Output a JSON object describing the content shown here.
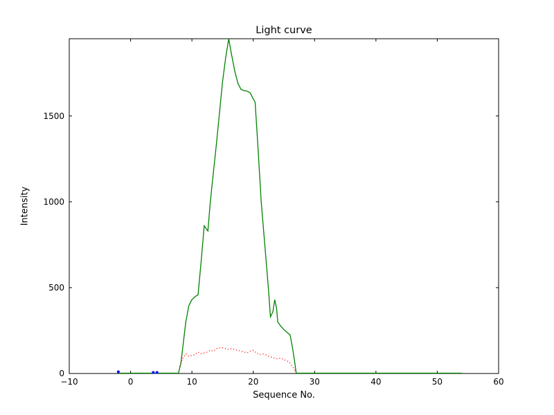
{
  "chart_data": {
    "type": "line",
    "title": "Light curve",
    "xlabel": "Sequence No.",
    "ylabel": "Intensity",
    "xlim": [
      -10,
      60
    ],
    "ylim": [
      0,
      1950
    ],
    "x_ticks": [
      -10,
      0,
      10,
      20,
      30,
      40,
      50,
      60
    ],
    "x_tick_labels": [
      "−10",
      "0",
      "10",
      "20",
      "30",
      "40",
      "50",
      "60"
    ],
    "y_ticks": [
      0,
      500,
      1000,
      1500
    ],
    "y_tick_labels": [
      "0",
      "500",
      "1000",
      "1500"
    ],
    "grid": false,
    "legend": null,
    "series": [
      {
        "name": "main-light-curve",
        "type": "line",
        "style": "solid",
        "color": "#008000",
        "points": [
          [
            -2,
            2
          ],
          [
            7.8,
            2
          ],
          [
            8.2,
            60
          ],
          [
            8.5,
            150
          ],
          [
            9,
            300
          ],
          [
            9.5,
            395
          ],
          [
            10,
            430
          ],
          [
            10.6,
            450
          ],
          [
            11,
            458
          ],
          [
            11.5,
            650
          ],
          [
            12,
            860
          ],
          [
            12.3,
            845
          ],
          [
            12.6,
            830
          ],
          [
            13,
            1000
          ],
          [
            13.5,
            1170
          ],
          [
            14,
            1340
          ],
          [
            14.5,
            1520
          ],
          [
            15,
            1700
          ],
          [
            15.5,
            1840
          ],
          [
            16,
            1950
          ],
          [
            16.4,
            1870
          ],
          [
            17,
            1760
          ],
          [
            17.5,
            1690
          ],
          [
            18,
            1655
          ],
          [
            18.5,
            1648
          ],
          [
            19,
            1645
          ],
          [
            19.5,
            1635
          ],
          [
            20,
            1600
          ],
          [
            20.3,
            1580
          ],
          [
            20.8,
            1300
          ],
          [
            21.3,
            1000
          ],
          [
            22,
            700
          ],
          [
            22.5,
            480
          ],
          [
            22.8,
            330
          ],
          [
            23.2,
            360
          ],
          [
            23.5,
            430
          ],
          [
            23.8,
            380
          ],
          [
            24,
            300
          ],
          [
            24.5,
            275
          ],
          [
            25,
            255
          ],
          [
            25.5,
            240
          ],
          [
            26,
            225
          ],
          [
            26.4,
            150
          ],
          [
            26.7,
            80
          ],
          [
            27,
            2
          ],
          [
            54,
            2
          ]
        ]
      },
      {
        "name": "background-curve",
        "type": "line",
        "style": "dotted",
        "color": "#ff0000",
        "points": [
          [
            8,
            40
          ],
          [
            8.5,
            90
          ],
          [
            9,
            115
          ],
          [
            9.5,
            100
          ],
          [
            10,
            105
          ],
          [
            10.5,
            110
          ],
          [
            11,
            125
          ],
          [
            11.5,
            115
          ],
          [
            12,
            120
          ],
          [
            12.5,
            125
          ],
          [
            13,
            135
          ],
          [
            13.5,
            130
          ],
          [
            14,
            145
          ],
          [
            14.5,
            150
          ],
          [
            15,
            150
          ],
          [
            15.5,
            145
          ],
          [
            16,
            140
          ],
          [
            16.5,
            145
          ],
          [
            17,
            140
          ],
          [
            17.5,
            135
          ],
          [
            18,
            130
          ],
          [
            18.5,
            125
          ],
          [
            19,
            120
          ],
          [
            19.5,
            130
          ],
          [
            20,
            135
          ],
          [
            20.5,
            120
          ],
          [
            21,
            110
          ],
          [
            21.5,
            115
          ],
          [
            22,
            110
          ],
          [
            22.5,
            100
          ],
          [
            23,
            95
          ],
          [
            23.5,
            90
          ],
          [
            24,
            85
          ],
          [
            24.5,
            90
          ],
          [
            25,
            80
          ],
          [
            25.5,
            75
          ],
          [
            26,
            60
          ],
          [
            26.5,
            35
          ],
          [
            27,
            5
          ]
        ]
      },
      {
        "name": "flagged-points",
        "type": "scatter",
        "style": "dots",
        "color": "#0000ff",
        "points": [
          [
            -2,
            10
          ],
          [
            3.7,
            6
          ],
          [
            4.3,
            6
          ]
        ]
      }
    ],
    "frame_color": "#000000",
    "background_color": "#ffffff"
  }
}
